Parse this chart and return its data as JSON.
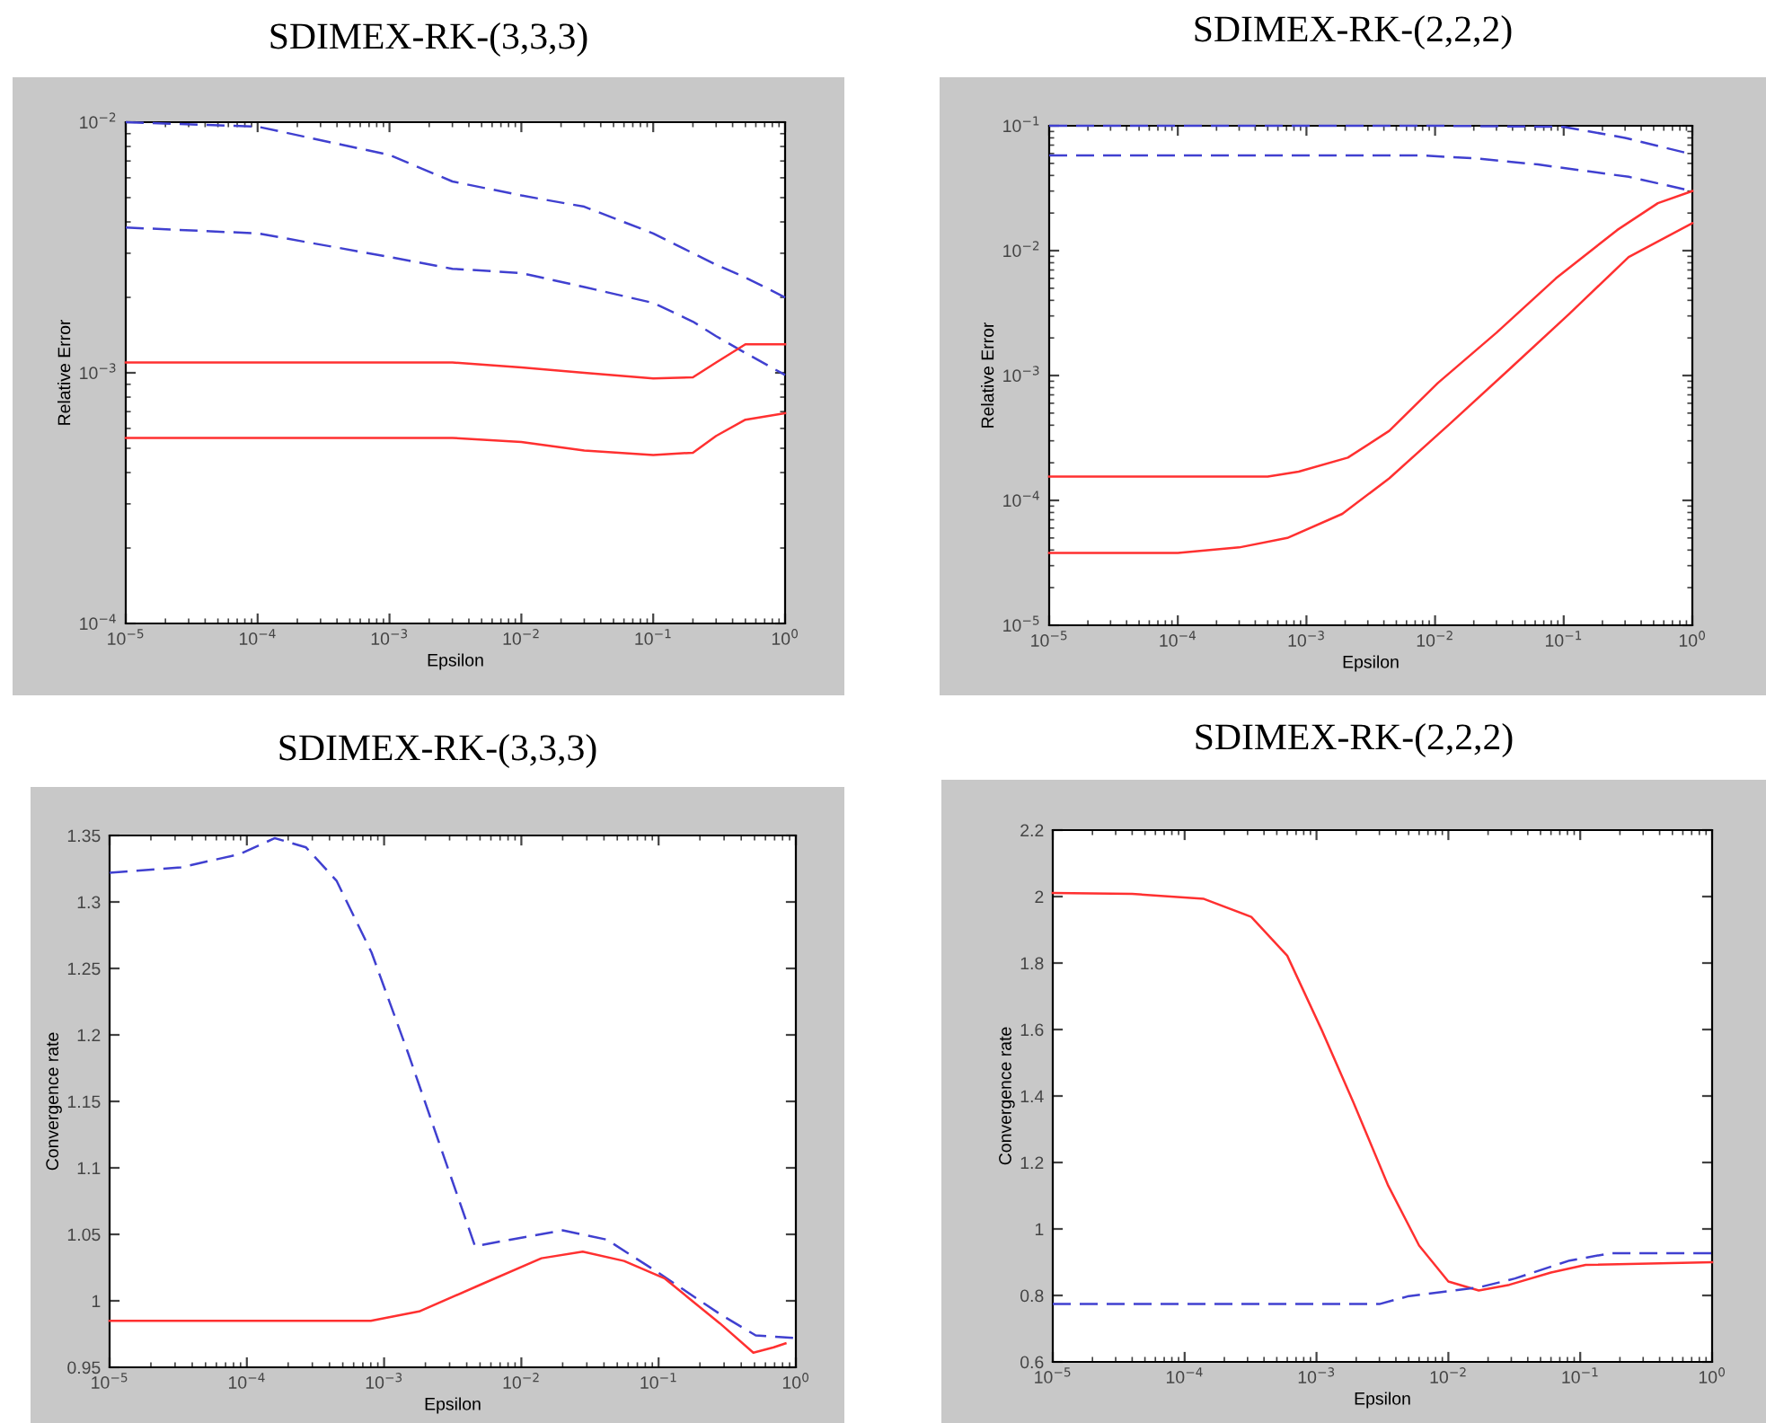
{
  "chart_data": [
    {
      "type": "line",
      "title": "SDIMEX-RK-(3,3,3)",
      "xlabel": "Epsilon",
      "ylabel": "Relative Error",
      "log": "xy",
      "x": [
        1e-05,
        0.0001,
        0.001,
        0.003,
        0.01,
        0.03,
        0.1,
        0.2,
        0.3,
        0.5,
        1
      ],
      "xlim": [
        1e-05,
        1
      ],
      "ylim": [
        0.0001,
        0.01
      ],
      "xticks": [
        {
          "value": 1e-05,
          "label": "10$^{−5}$"
        },
        {
          "value": 0.0001,
          "label": "10$^{−4}$"
        },
        {
          "value": 0.001,
          "label": "10$^{−3}$"
        },
        {
          "value": 0.01,
          "label": "10$^{−2}$"
        },
        {
          "value": 0.1,
          "label": "10$^{−1}$"
        },
        {
          "value": 1,
          "label": "10$^{0}$"
        }
      ],
      "yticks": [
        {
          "value": 0.0001,
          "label": "10$^{−4}$"
        },
        {
          "value": 0.001,
          "label": "10$^{−3}$"
        },
        {
          "value": 0.01,
          "label": "10$^{−2}$"
        }
      ],
      "series": [
        {
          "color": "#4040d0",
          "line_style": "dashed",
          "values": [
            0.01,
            0.0096,
            0.0074,
            0.0058,
            0.0051,
            0.0046,
            0.0036,
            0.003,
            0.0027,
            0.0024,
            0.002
          ]
        },
        {
          "color": "#4040d0",
          "line_style": "dashed",
          "values": [
            0.0038,
            0.0036,
            0.0029,
            0.0026,
            0.0025,
            0.0022,
            0.0019,
            0.0016,
            0.0014,
            0.0012,
            0.00098
          ]
        },
        {
          "color": "#ff3030",
          "line_style": "solid",
          "values": [
            0.0011,
            0.0011,
            0.0011,
            0.0011,
            0.00105,
            0.001,
            0.00095,
            0.00096,
            0.0011,
            0.0013,
            0.0013
          ]
        },
        {
          "color": "#ff3030",
          "line_style": "solid",
          "values": [
            0.00055,
            0.00055,
            0.00055,
            0.00055,
            0.00053,
            0.00049,
            0.00047,
            0.00048,
            0.00056,
            0.00065,
            0.00069
          ]
        }
      ]
    },
    {
      "type": "line",
      "title": "SDIMEX-RK-(2,2,2)",
      "xlabel": "Epsilon",
      "ylabel": "Relative Error",
      "log": "xy",
      "xlim": [
        1e-05,
        1
      ],
      "ylim": [
        1e-05,
        0.1
      ],
      "xticks": [
        {
          "value": 1e-05,
          "label": "10$^{−5}$"
        },
        {
          "value": 0.0001,
          "label": "10$^{−4}$"
        },
        {
          "value": 0.001,
          "label": "10$^{−3}$"
        },
        {
          "value": 0.01,
          "label": "10$^{−2}$"
        },
        {
          "value": 0.1,
          "label": "10$^{−1}$"
        },
        {
          "value": 1,
          "label": "10$^{0}$"
        }
      ],
      "yticks": [
        {
          "value": 1e-05,
          "label": "10$^{−5}$"
        },
        {
          "value": 0.0001,
          "label": "10$^{−4}$"
        },
        {
          "value": 0.001,
          "label": "10$^{−3}$"
        },
        {
          "value": 0.01,
          "label": "10$^{−2}$"
        },
        {
          "value": 0.1,
          "label": "10$^{−1}$"
        }
      ],
      "series": [
        {
          "color": "#4040d0",
          "line_style": "dashed",
          "x": [
            1e-05,
            0.001,
            0.01,
            0.1,
            0.3,
            1
          ],
          "values": [
            0.1,
            0.1,
            0.1,
            0.098,
            0.08,
            0.059
          ]
        },
        {
          "color": "#4040d0",
          "line_style": "dashed",
          "x": [
            1e-05,
            0.001,
            0.0074,
            0.02,
            0.063,
            0.32,
            1
          ],
          "values": [
            0.058,
            0.058,
            0.058,
            0.055,
            0.049,
            0.039,
            0.03
          ]
        },
        {
          "color": "#ff3030",
          "line_style": "solid",
          "x": [
            1e-05,
            0.0001,
            0.0005,
            0.00087,
            0.0021,
            0.0044,
            0.0105,
            0.03,
            0.087,
            0.26,
            0.54,
            1
          ],
          "values": [
            0.000155,
            0.000155,
            0.000155,
            0.00017,
            0.00022,
            0.00036,
            0.00087,
            0.0022,
            0.006,
            0.0146,
            0.024,
            0.03
          ]
        },
        {
          "color": "#ff3030",
          "line_style": "solid",
          "x": [
            1e-05,
            0.0001,
            0.0003,
            0.00071,
            0.0019,
            0.0044,
            0.013,
            0.037,
            0.11,
            0.32,
            1
          ],
          "values": [
            3.8e-05,
            3.8e-05,
            4.2e-05,
            5e-05,
            7.8e-05,
            0.00015,
            0.00041,
            0.0011,
            0.0031,
            0.0089,
            0.0166
          ]
        }
      ]
    },
    {
      "type": "line",
      "title": "SDIMEX-RK-(3,3,3)",
      "xlabel": "Epsilon",
      "ylabel": "Convergence rate",
      "log": "x",
      "xlim": [
        1e-05,
        1
      ],
      "ylim": [
        0.95,
        1.35
      ],
      "xticks": [
        {
          "value": 1e-05,
          "label": "10$^{−5}$"
        },
        {
          "value": 0.0001,
          "label": "10$^{−4}$"
        },
        {
          "value": 0.001,
          "label": "10$^{−3}$"
        },
        {
          "value": 0.01,
          "label": "10$^{−2}$"
        },
        {
          "value": 0.1,
          "label": "10$^{−1}$"
        },
        {
          "value": 1,
          "label": "10$^{0}$"
        }
      ],
      "yticks": [
        0.95,
        1,
        1.05,
        1.1,
        1.15,
        1.2,
        1.25,
        1.3,
        1.35
      ],
      "series": [
        {
          "color": "#4040d0",
          "line_style": "dashed",
          "x": [
            1e-05,
            3.3e-05,
            8.9e-05,
            0.00016,
            0.00027,
            0.00045,
            0.00081,
            0.0015,
            0.0028,
            0.0046,
            0.0083,
            0.02,
            0.042,
            0.1,
            0.28,
            0.51,
            1
          ],
          "values": [
            1.322,
            1.326,
            1.336,
            1.348,
            1.341,
            1.316,
            1.262,
            1.186,
            1.105,
            1.041,
            1.046,
            1.053,
            1.046,
            1.021,
            0.99,
            0.974,
            0.972
          ]
        },
        {
          "color": "#ff3030",
          "line_style": "solid",
          "x": [
            1e-05,
            0.0001,
            0.0008,
            0.0018,
            0.005,
            0.014,
            0.028,
            0.056,
            0.11,
            0.28,
            0.49,
            0.69,
            0.84
          ],
          "values": [
            0.985,
            0.985,
            0.985,
            0.992,
            1.012,
            1.032,
            1.037,
            1.03,
            1.017,
            0.983,
            0.961,
            0.965,
            0.968
          ]
        }
      ]
    },
    {
      "type": "line",
      "title": "SDIMEX-RK-(2,2,2)",
      "xlabel": "Epsilon",
      "ylabel": "Convergence rate",
      "log": "x",
      "xlim": [
        1e-05,
        1
      ],
      "ylim": [
        0.6,
        2.2
      ],
      "xticks": [
        {
          "value": 1e-05,
          "label": "10$^{−5}$"
        },
        {
          "value": 0.0001,
          "label": "10$^{−4}$"
        },
        {
          "value": 0.001,
          "label": "10$^{−3}$"
        },
        {
          "value": 0.01,
          "label": "10$^{−2}$"
        },
        {
          "value": 0.1,
          "label": "10$^{−1}$"
        },
        {
          "value": 1,
          "label": "10$^{0}$"
        }
      ],
      "yticks": [
        0.6,
        0.8,
        1,
        1.2,
        1.4,
        1.6,
        1.8,
        2,
        2.2
      ],
      "series": [
        {
          "color": "#ff3030",
          "line_style": "solid",
          "x": [
            1e-05,
            4e-05,
            0.00014,
            0.00032,
            0.0006,
            0.0011,
            0.0019,
            0.0035,
            0.006,
            0.01,
            0.017,
            0.029,
            0.06,
            0.11,
            1
          ],
          "values": [
            2.011,
            2.008,
            1.993,
            1.939,
            1.822,
            1.597,
            1.382,
            1.13,
            0.95,
            0.842,
            0.815,
            0.832,
            0.869,
            0.892,
            0.9
          ]
        },
        {
          "color": "#4040d0",
          "line_style": "dashed",
          "x": [
            1e-05,
            0.001,
            0.003,
            0.0049,
            0.011,
            0.017,
            0.032,
            0.083,
            0.17,
            1
          ],
          "values": [
            0.774,
            0.774,
            0.774,
            0.797,
            0.815,
            0.824,
            0.851,
            0.905,
            0.927,
            0.927
          ]
        }
      ]
    }
  ]
}
